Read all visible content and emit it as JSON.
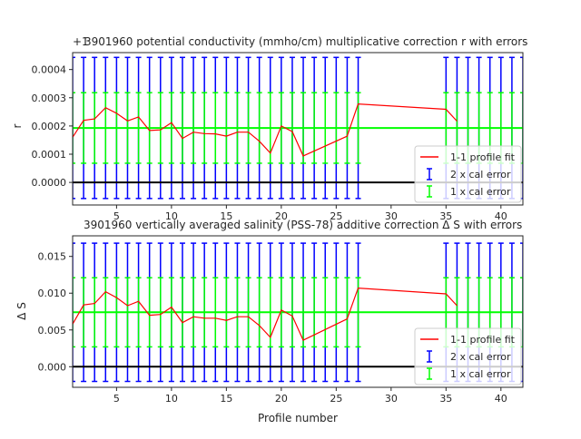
{
  "chart_data": [
    {
      "type": "line",
      "title": "3901960 potential conductivity (mmho/cm) multiplicative correction r with errors",
      "offset_label": "+1",
      "ylabel": "r",
      "xlim": [
        1,
        42
      ],
      "ylim": [
        -8e-05,
        0.00046
      ],
      "xticks": [
        5,
        10,
        15,
        20,
        25,
        30,
        35,
        40
      ],
      "yticks": [
        0.0,
        0.0001,
        0.0002,
        0.0003,
        0.0004
      ],
      "ytick_labels": [
        "0.0000",
        "0.0001",
        "0.0002",
        "0.0003",
        "0.0004"
      ],
      "grid": false,
      "legend_position": "lower-right",
      "fit_value": 0.000193,
      "cal_error_1x": 0.000125,
      "cal_error_2x": 0.00025,
      "zero_line": 0,
      "error_bar_x": [
        1,
        2,
        3,
        4,
        5,
        6,
        7,
        8,
        9,
        10,
        11,
        12,
        13,
        14,
        15,
        16,
        17,
        18,
        19,
        20,
        21,
        22,
        23,
        24,
        25,
        26,
        27,
        35,
        36,
        37,
        38,
        39,
        40,
        41,
        42
      ],
      "series": [
        {
          "name": "1-1 profile fit",
          "color": "#ff0000",
          "x": [
            1,
            2,
            3,
            4,
            5,
            6,
            7,
            8,
            9,
            10,
            11,
            12,
            13,
            14,
            15,
            16,
            17,
            18,
            19,
            20,
            21,
            22,
            26,
            27,
            35,
            36
          ],
          "y": [
            0.00016,
            0.00022,
            0.000225,
            0.000265,
            0.000245,
            0.000218,
            0.000232,
            0.000184,
            0.000186,
            0.000212,
            0.000156,
            0.000178,
            0.000173,
            0.000172,
            0.000164,
            0.000178,
            0.000178,
            0.000146,
            0.000104,
            0.0002,
            0.00018,
            9.4e-05,
            0.000164,
            0.000278,
            0.000259,
            0.000217
          ]
        }
      ],
      "legend": [
        {
          "label": "1-1 profile fit",
          "color": "#ff0000",
          "kind": "line"
        },
        {
          "label": "2 x cal error",
          "color": "#0000ff",
          "kind": "errorbar"
        },
        {
          "label": "1 x cal error",
          "color": "#00ff00",
          "kind": "errorbar"
        }
      ]
    },
    {
      "type": "line",
      "title": "3901960 vertically averaged salinity (PSS-78) additive correction Δ S with errors",
      "xlabel": "Profile number",
      "ylabel": "Δ S",
      "xlim": [
        1,
        42
      ],
      "ylim": [
        -0.0028,
        0.0178
      ],
      "xticks": [
        5,
        10,
        15,
        20,
        25,
        30,
        35,
        40
      ],
      "yticks": [
        0.0,
        0.005,
        0.01,
        0.015
      ],
      "ytick_labels": [
        "0.000",
        "0.005",
        "0.010",
        "0.015"
      ],
      "grid": false,
      "legend_position": "lower-right",
      "fit_value": 0.0074,
      "cal_error_1x": 0.0047,
      "cal_error_2x": 0.0094,
      "zero_line": 0,
      "error_bar_x": [
        1,
        2,
        3,
        4,
        5,
        6,
        7,
        8,
        9,
        10,
        11,
        12,
        13,
        14,
        15,
        16,
        17,
        18,
        19,
        20,
        21,
        22,
        23,
        24,
        25,
        26,
        27,
        35,
        36,
        37,
        38,
        39,
        40,
        41,
        42
      ],
      "series": [
        {
          "name": "1-1 profile fit",
          "color": "#ff0000",
          "x": [
            1,
            2,
            3,
            4,
            5,
            6,
            7,
            8,
            9,
            10,
            11,
            12,
            13,
            14,
            15,
            16,
            17,
            18,
            19,
            20,
            21,
            22,
            26,
            27,
            35,
            36
          ],
          "y": [
            0.0058,
            0.0084,
            0.0086,
            0.0102,
            0.0094,
            0.0083,
            0.0089,
            0.007,
            0.0071,
            0.0081,
            0.006,
            0.0068,
            0.0066,
            0.0066,
            0.0063,
            0.0068,
            0.0068,
            0.0056,
            0.004,
            0.0077,
            0.0069,
            0.0036,
            0.0065,
            0.0107,
            0.0099,
            0.0083
          ]
        }
      ],
      "legend": [
        {
          "label": "1-1 profile fit",
          "color": "#ff0000",
          "kind": "line"
        },
        {
          "label": "2 x cal error",
          "color": "#0000ff",
          "kind": "errorbar"
        },
        {
          "label": "1 x cal error",
          "color": "#00ff00",
          "kind": "errorbar"
        }
      ]
    }
  ]
}
